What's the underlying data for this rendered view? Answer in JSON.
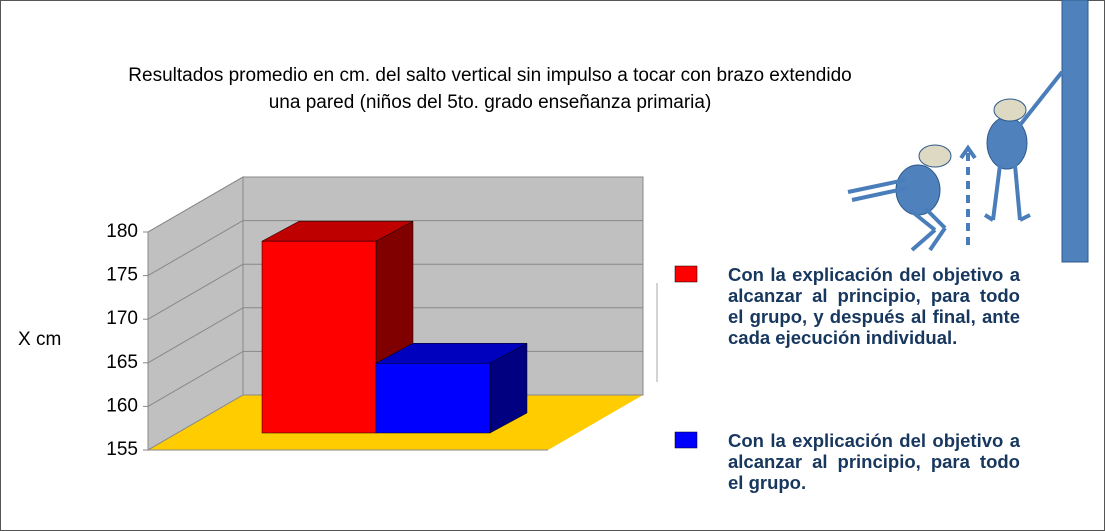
{
  "chart_data": {
    "type": "bar3d",
    "title": "Resultados promedio en cm. del salto vertical sin impulso a tocar con brazo extendido una pared (niños del 5to. grado enseñanza primaria)",
    "y_label": "X cm",
    "categories": [
      null
    ],
    "series": [
      {
        "name": "Con la explicación del objetivo a alcanzar al principio, para todo el grupo, y después al final, ante cada ejecución individual.",
        "color": "#ff0000",
        "values": [
          177
        ]
      },
      {
        "name": "Con la explicación del objetivo a alcanzar al principio, para todo el grupo.",
        "color": "#0000ff",
        "values": [
          163
        ]
      }
    ],
    "ylim": [
      155,
      180
    ],
    "yticks": [
      155,
      160,
      165,
      170,
      175,
      180
    ],
    "grid": true
  }
}
